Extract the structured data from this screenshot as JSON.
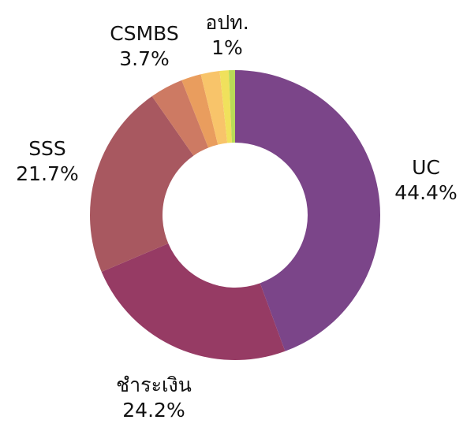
{
  "chart_data": {
    "type": "pie",
    "categories": [
      "UC",
      "ชำระเงิน",
      "SSS",
      "CSMBS",
      null,
      null,
      "อปท.",
      null
    ],
    "values": [
      44.4,
      24.2,
      21.7,
      3.7,
      2.2,
      2.1,
      1,
      0.7
    ],
    "value_labels": [
      "44.4%",
      "24.2%",
      "21.7%",
      "3.7%",
      null,
      null,
      "1%",
      null
    ],
    "colors": [
      "#7b4589",
      "#963b64",
      "#a85860",
      "#cd7a63",
      "#e99d5e",
      "#f8c46a",
      "#f0e15c",
      "#b9db57"
    ],
    "donut": true
  }
}
